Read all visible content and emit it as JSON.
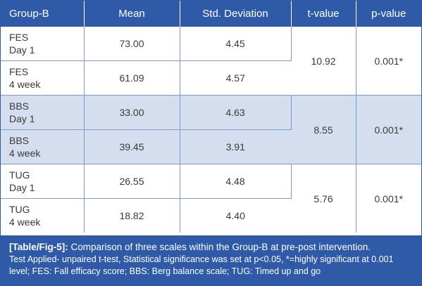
{
  "table": {
    "headers": [
      "Group-B",
      "Mean",
      "Std. Deviation",
      "t-value",
      "p-value"
    ],
    "rows": [
      {
        "scale_line1": "FES",
        "scale_line2": "Day 1",
        "mean": "73.00",
        "sd": "4.45"
      },
      {
        "scale_line1": "FES",
        "scale_line2": "4 week",
        "mean": "61.09",
        "sd": "4.57"
      },
      {
        "scale_line1": "BBS",
        "scale_line2": "Day 1",
        "mean": "33.00",
        "sd": "4.63"
      },
      {
        "scale_line1": "BBS",
        "scale_line2": "4 week",
        "mean": "39.45",
        "sd": "3.91"
      },
      {
        "scale_line1": "TUG",
        "scale_line2": "Day 1",
        "mean": "26.55",
        "sd": "4.48"
      },
      {
        "scale_line1": "TUG",
        "scale_line2": "4 week",
        "mean": "18.82",
        "sd": "4.40"
      }
    ],
    "groups": [
      {
        "t": "10.92",
        "p": "0.001*"
      },
      {
        "t": "8.55",
        "p": "0.001*"
      },
      {
        "t": "5.76",
        "p": "0.001*"
      }
    ]
  },
  "caption": {
    "label": "[Table/Fig-5]:",
    "title": " Comparison of three scales within the Group-B at pre-post intervention.",
    "note": "Test Applied- unpaired t-test, Statistical significance was set at p<0.05, *=highly significant at 0.001 level; FES: Fall efficacy score; BBS: Berg balance scale; TUG: Timed up and go"
  },
  "colors": {
    "header_bg": "#2e5aa7",
    "stripe_bg": "#d4deef",
    "border": "#7a9ad4"
  }
}
